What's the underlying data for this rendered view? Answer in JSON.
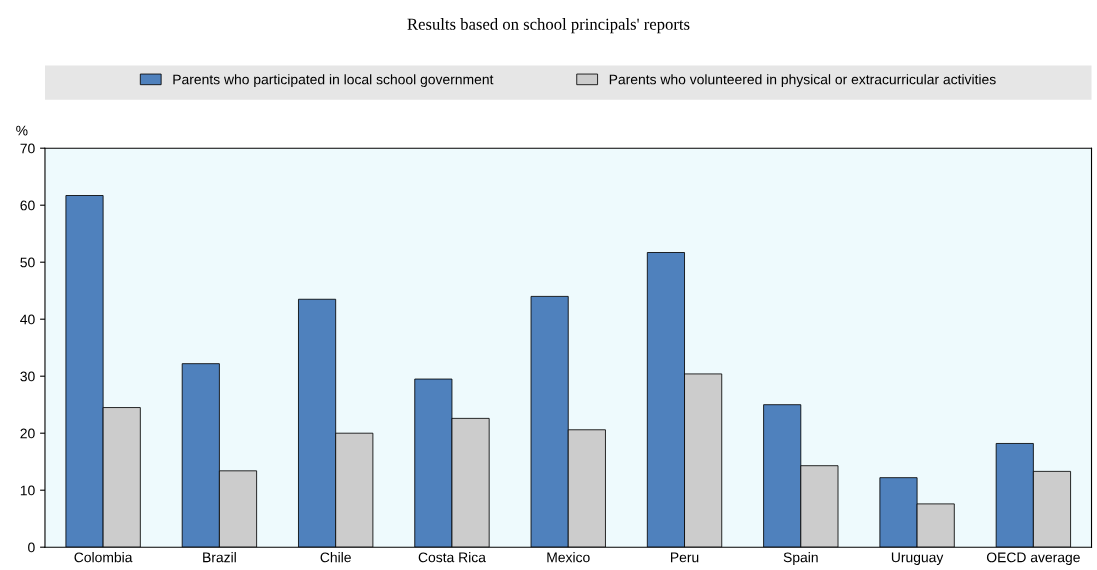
{
  "chart_data": {
    "type": "bar",
    "title": "Results based on school principals' reports",
    "ylabel": "%",
    "categories": [
      "Colombia",
      "Brazil",
      "Chile",
      "Costa Rica",
      "Mexico",
      "Peru",
      "Spain",
      "Uruguay",
      "OECD average"
    ],
    "series": [
      {
        "name": "Parents who participated in local school government",
        "color": "#4f81bd",
        "values": [
          61.7,
          32.2,
          43.5,
          29.5,
          44.0,
          51.7,
          25.0,
          12.2,
          18.2
        ]
      },
      {
        "name": "Parents who volunteered in physical or extracurricular activities",
        "color": "#cccccc",
        "values": [
          24.5,
          13.4,
          20.0,
          22.6,
          20.6,
          30.4,
          14.3,
          7.6,
          13.3
        ]
      }
    ],
    "ylim": [
      0,
      70
    ],
    "yticks": [
      0,
      10,
      20,
      30,
      40,
      50,
      60,
      70
    ],
    "grid": false,
    "legend": "top"
  }
}
